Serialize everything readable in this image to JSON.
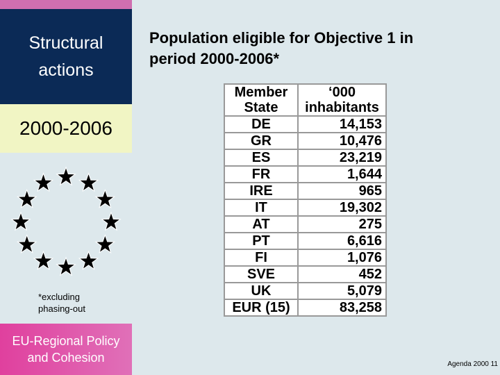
{
  "sidebar": {
    "top_title": "Structural actions",
    "period": "2000-2006",
    "footnote": "*excluding phasing-out",
    "bottom_title": "EU-Regional Policy and Cohesion"
  },
  "header": {
    "title": "Population eligible for Objective 1 in period 2000-2006*"
  },
  "table": {
    "columns": [
      "Member State",
      "‘000 inhabitants"
    ],
    "rows": [
      [
        "DE",
        "14,153"
      ],
      [
        "GR",
        "10,476"
      ],
      [
        "ES",
        "23,219"
      ],
      [
        "FR",
        "1,644"
      ],
      [
        "IRE",
        "965"
      ],
      [
        "IT",
        "19,302"
      ],
      [
        "AT",
        "275"
      ],
      [
        "PT",
        "6,616"
      ],
      [
        "FI",
        "1,076"
      ],
      [
        "SVE",
        "452"
      ],
      [
        "UK",
        "5,079"
      ],
      [
        "EUR (15)",
        "83,258"
      ]
    ]
  },
  "footer": {
    "page_label": "Agenda 2000 11"
  }
}
